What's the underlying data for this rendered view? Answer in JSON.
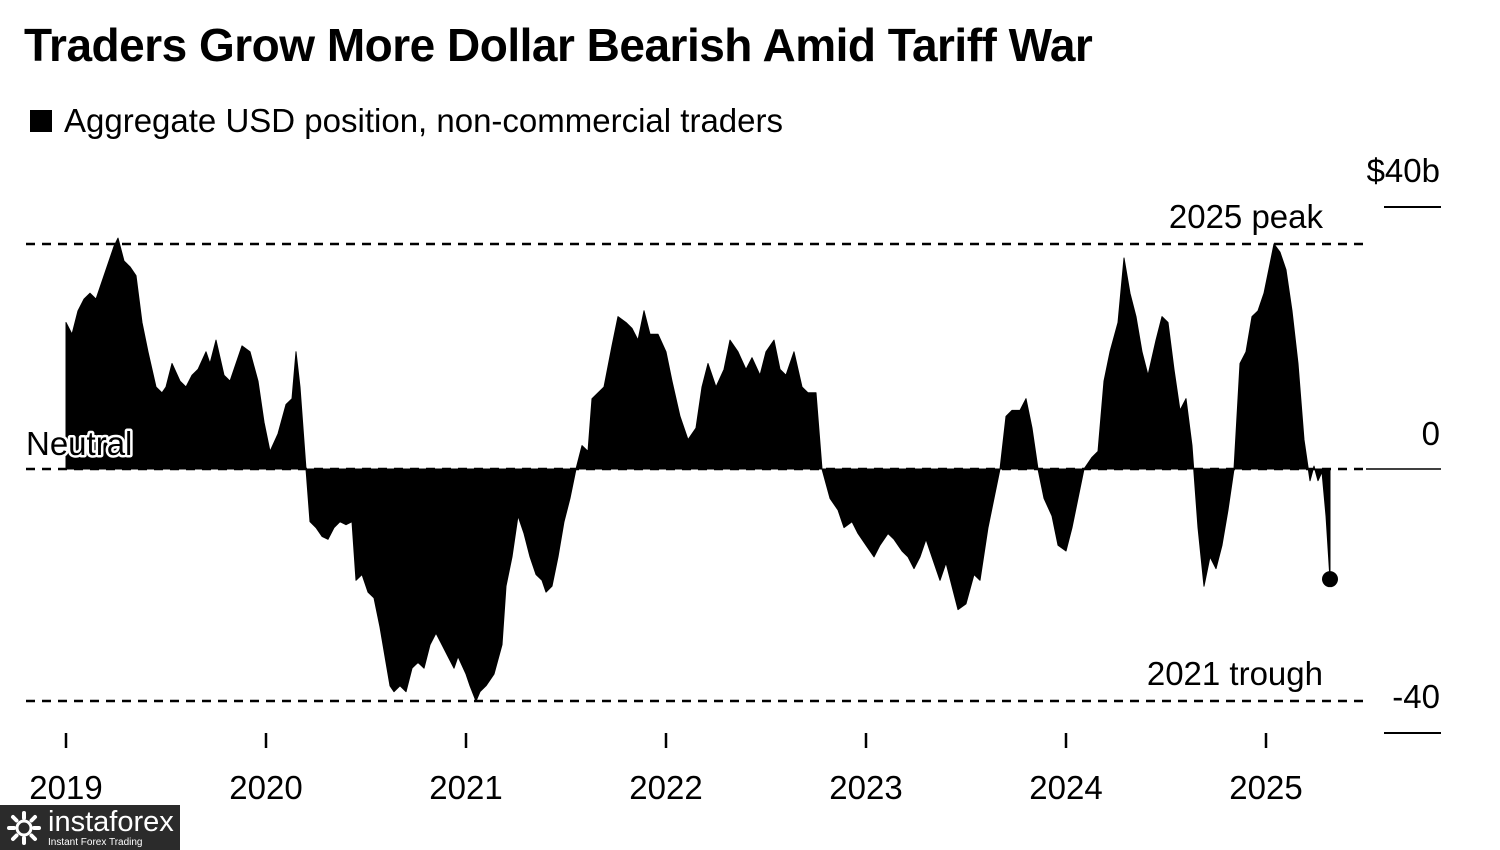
{
  "chart_data": {
    "type": "area",
    "title": "Traders Grow More Dollar Bearish Amid Tariff War",
    "legend": {
      "swatch_color": "#000000",
      "label": "Aggregate USD position, non-commercial traders"
    },
    "x_ticks": [
      "2019",
      "2020",
      "2021",
      "2022",
      "2023",
      "2024",
      "2025"
    ],
    "y_ticks": [
      {
        "value": 40,
        "label": "$40b"
      },
      {
        "value": 0,
        "label": "0"
      },
      {
        "value": -40,
        "label": "-40"
      }
    ],
    "ylim": [
      -45,
      45
    ],
    "xlim": [
      2019.0,
      2025.55
    ],
    "fill_color": "#000000",
    "reference_lines": [
      {
        "value": 38.4,
        "label": "2025 peak",
        "style": "dashed"
      },
      {
        "value": 0,
        "label": "Neutral",
        "style": "dashed"
      },
      {
        "value": -39.6,
        "label": "2021 trough",
        "style": "dashed"
      }
    ],
    "end_marker": {
      "x": 2025.32,
      "y": -18.8
    },
    "series": [
      {
        "values": [
          [
            2019.0,
            25.0
          ],
          [
            2019.03,
            23.0
          ],
          [
            2019.06,
            27.0
          ],
          [
            2019.09,
            29.0
          ],
          [
            2019.12,
            30.0
          ],
          [
            2019.15,
            29.0
          ],
          [
            2019.18,
            32.0
          ],
          [
            2019.21,
            35.0
          ],
          [
            2019.24,
            38.0
          ],
          [
            2019.26,
            39.4
          ],
          [
            2019.29,
            35.5
          ],
          [
            2019.32,
            34.5
          ],
          [
            2019.35,
            33.0
          ],
          [
            2019.38,
            25.0
          ],
          [
            2019.41,
            20.0
          ],
          [
            2019.45,
            14.0
          ],
          [
            2019.48,
            13.0
          ],
          [
            2019.5,
            14.0
          ],
          [
            2019.53,
            18.0
          ],
          [
            2019.57,
            15.0
          ],
          [
            2019.6,
            14.0
          ],
          [
            2019.63,
            16.0
          ],
          [
            2019.66,
            17.0
          ],
          [
            2019.7,
            20.0
          ],
          [
            2019.72,
            18.0
          ],
          [
            2019.75,
            22.0
          ],
          [
            2019.79,
            16.0
          ],
          [
            2019.82,
            15.0
          ],
          [
            2019.85,
            18.0
          ],
          [
            2019.88,
            21.0
          ],
          [
            2019.92,
            20.0
          ],
          [
            2019.96,
            15.0
          ],
          [
            2019.99,
            8.0
          ],
          [
            2020.02,
            3.0
          ],
          [
            2020.06,
            6.0
          ],
          [
            2020.1,
            11.0
          ],
          [
            2020.13,
            12.0
          ],
          [
            2020.15,
            20.0
          ],
          [
            2020.17,
            14.0
          ],
          [
            2020.2,
            0.0
          ],
          [
            2020.22,
            -9.0
          ],
          [
            2020.25,
            -10.0
          ],
          [
            2020.28,
            -11.5
          ],
          [
            2020.31,
            -12.0
          ],
          [
            2020.34,
            -10.0
          ],
          [
            2020.37,
            -9.0
          ],
          [
            2020.4,
            -9.5
          ],
          [
            2020.43,
            -9.0
          ],
          [
            2020.45,
            -19.0
          ],
          [
            2020.48,
            -18.0
          ],
          [
            2020.51,
            -21.0
          ],
          [
            2020.54,
            -22.0
          ],
          [
            2020.57,
            -27.0
          ],
          [
            2020.6,
            -33.0
          ],
          [
            2020.62,
            -37.0
          ],
          [
            2020.64,
            -38.0
          ],
          [
            2020.67,
            -37.0
          ],
          [
            2020.7,
            -38.0
          ],
          [
            2020.73,
            -34.0
          ],
          [
            2020.76,
            -33.0
          ],
          [
            2020.79,
            -34.0
          ],
          [
            2020.82,
            -30.0
          ],
          [
            2020.85,
            -28.0
          ],
          [
            2020.88,
            -30.0
          ],
          [
            2020.91,
            -32.0
          ],
          [
            2020.94,
            -34.0
          ],
          [
            2020.96,
            -32.0
          ],
          [
            2021.0,
            -35.0
          ],
          [
            2021.02,
            -37.0
          ],
          [
            2021.05,
            -39.6
          ],
          [
            2021.07,
            -38.0
          ],
          [
            2021.1,
            -37.0
          ],
          [
            2021.14,
            -35.0
          ],
          [
            2021.18,
            -30.0
          ],
          [
            2021.2,
            -20.0
          ],
          [
            2021.23,
            -15.0
          ],
          [
            2021.26,
            -8.0
          ],
          [
            2021.29,
            -11.0
          ],
          [
            2021.32,
            -15.0
          ],
          [
            2021.35,
            -18.0
          ],
          [
            2021.38,
            -19.0
          ],
          [
            2021.4,
            -21.0
          ],
          [
            2021.43,
            -20.0
          ],
          [
            2021.46,
            -15.0
          ],
          [
            2021.49,
            -9.0
          ],
          [
            2021.52,
            -5.0
          ],
          [
            2021.55,
            0.0
          ],
          [
            2021.58,
            4.0
          ],
          [
            2021.61,
            3.0
          ],
          [
            2021.63,
            12.0
          ],
          [
            2021.66,
            13.0
          ],
          [
            2021.69,
            14.0
          ],
          [
            2021.73,
            21.0
          ],
          [
            2021.76,
            26.0
          ],
          [
            2021.8,
            25.0
          ],
          [
            2021.83,
            24.0
          ],
          [
            2021.86,
            22.0
          ],
          [
            2021.89,
            27.0
          ],
          [
            2021.92,
            23.0
          ],
          [
            2021.96,
            23.0
          ],
          [
            2022.0,
            20.0
          ],
          [
            2022.03,
            15.0
          ],
          [
            2022.07,
            9.0
          ],
          [
            2022.11,
            5.0
          ],
          [
            2022.15,
            7.0
          ],
          [
            2022.18,
            14.0
          ],
          [
            2022.21,
            18.0
          ],
          [
            2022.25,
            14.0
          ],
          [
            2022.29,
            17.0
          ],
          [
            2022.32,
            22.0
          ],
          [
            2022.36,
            20.0
          ],
          [
            2022.4,
            17.0
          ],
          [
            2022.43,
            19.0
          ],
          [
            2022.47,
            16.0
          ],
          [
            2022.5,
            20.0
          ],
          [
            2022.54,
            22.0
          ],
          [
            2022.57,
            17.0
          ],
          [
            2022.6,
            16.0
          ],
          [
            2022.64,
            20.0
          ],
          [
            2022.68,
            14.0
          ],
          [
            2022.71,
            13.0
          ],
          [
            2022.75,
            13.0
          ],
          [
            2022.78,
            0.0
          ],
          [
            2022.82,
            -5.0
          ],
          [
            2022.86,
            -7.0
          ],
          [
            2022.89,
            -10.0
          ],
          [
            2022.93,
            -9.0
          ],
          [
            2022.96,
            -11.0
          ],
          [
            2023.0,
            -13.0
          ],
          [
            2023.04,
            -15.0
          ],
          [
            2023.07,
            -13.0
          ],
          [
            2023.11,
            -11.0
          ],
          [
            2023.14,
            -12.0
          ],
          [
            2023.18,
            -14.0
          ],
          [
            2023.21,
            -15.0
          ],
          [
            2023.24,
            -17.0
          ],
          [
            2023.27,
            -15.0
          ],
          [
            2023.3,
            -12.0
          ],
          [
            2023.34,
            -16.0
          ],
          [
            2023.37,
            -19.0
          ],
          [
            2023.4,
            -16.0
          ],
          [
            2023.43,
            -20.0
          ],
          [
            2023.46,
            -24.0
          ],
          [
            2023.5,
            -23.0
          ],
          [
            2023.54,
            -18.0
          ],
          [
            2023.57,
            -19.0
          ],
          [
            2023.61,
            -10.0
          ],
          [
            2023.64,
            -5.0
          ],
          [
            2023.67,
            0.0
          ],
          [
            2023.7,
            9.0
          ],
          [
            2023.73,
            10.0
          ],
          [
            2023.77,
            10.0
          ],
          [
            2023.8,
            12.0
          ],
          [
            2023.83,
            7.0
          ],
          [
            2023.86,
            0.0
          ],
          [
            2023.89,
            -5.0
          ],
          [
            2023.93,
            -8.0
          ],
          [
            2023.96,
            -13.0
          ],
          [
            2024.0,
            -14.0
          ],
          [
            2024.03,
            -10.0
          ],
          [
            2024.06,
            -5.0
          ],
          [
            2024.09,
            0.0
          ],
          [
            2024.13,
            2.0
          ],
          [
            2024.16,
            3.0
          ],
          [
            2024.19,
            15.0
          ],
          [
            2024.22,
            20.0
          ],
          [
            2024.26,
            25.0
          ],
          [
            2024.29,
            36.0
          ],
          [
            2024.32,
            30.0
          ],
          [
            2024.35,
            26.0
          ],
          [
            2024.38,
            20.0
          ],
          [
            2024.41,
            16.0
          ],
          [
            2024.45,
            22.0
          ],
          [
            2024.48,
            26.0
          ],
          [
            2024.51,
            25.0
          ],
          [
            2024.54,
            17.0
          ],
          [
            2024.57,
            10.0
          ],
          [
            2024.6,
            12.0
          ],
          [
            2024.63,
            4.0
          ],
          [
            2024.66,
            -10.0
          ],
          [
            2024.69,
            -20.0
          ],
          [
            2024.72,
            -15.0
          ],
          [
            2024.75,
            -17.0
          ],
          [
            2024.78,
            -13.0
          ],
          [
            2024.81,
            -7.0
          ],
          [
            2024.84,
            0.0
          ],
          [
            2024.87,
            18.0
          ],
          [
            2024.9,
            20.0
          ],
          [
            2024.93,
            26.0
          ],
          [
            2024.96,
            27.0
          ],
          [
            2024.99,
            30.0
          ],
          [
            2025.02,
            35.0
          ],
          [
            2025.04,
            38.4
          ],
          [
            2025.07,
            37.0
          ],
          [
            2025.1,
            34.0
          ],
          [
            2025.13,
            27.0
          ],
          [
            2025.16,
            18.0
          ],
          [
            2025.19,
            5.0
          ],
          [
            2025.22,
            -2.0
          ],
          [
            2025.24,
            0.5
          ],
          [
            2025.26,
            -2.0
          ],
          [
            2025.28,
            -0.5
          ],
          [
            2025.3,
            -8.0
          ],
          [
            2025.32,
            -18.8
          ]
        ]
      }
    ]
  },
  "watermark": {
    "brand": "instaforex",
    "tagline": "Instant Forex Trading"
  }
}
